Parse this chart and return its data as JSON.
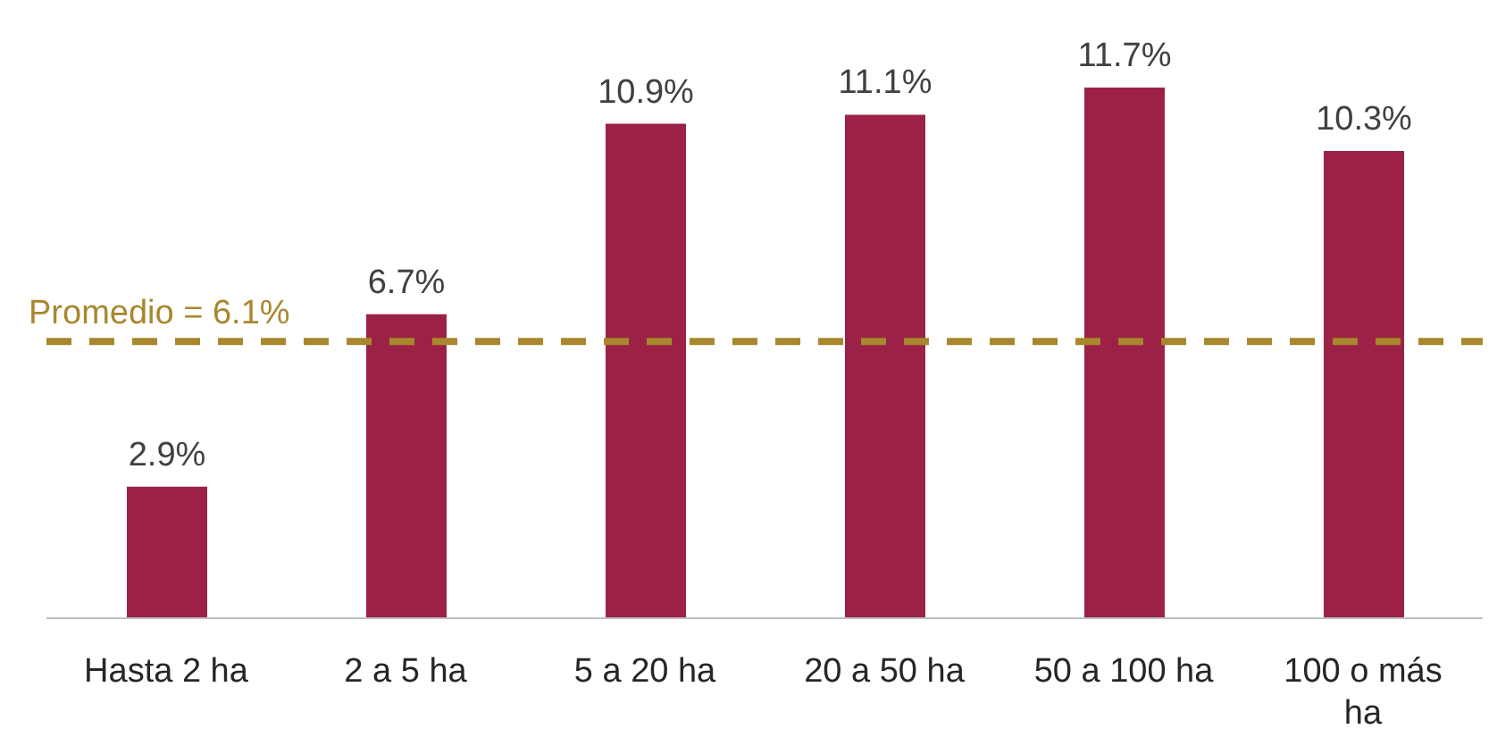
{
  "chart_data": {
    "type": "bar",
    "categories": [
      "Hasta 2 ha",
      "2 a 5 ha",
      "5 a 20 ha",
      "20 a 50 ha",
      "50 a 100 ha",
      "100 o más ha"
    ],
    "values": [
      2.9,
      6.7,
      10.9,
      11.1,
      11.7,
      10.3
    ],
    "color": "#9b2246",
    "value_labels": [
      "2.9%",
      "6.7%",
      "10.9%",
      "11.1%",
      "11.7%",
      "10.3%"
    ],
    "ref_lines": [
      {
        "axis": "y",
        "value": 6.1,
        "label": "Promedio = 6.1%",
        "color": "#a8872d",
        "line_style": "dashed"
      }
    ]
  }
}
